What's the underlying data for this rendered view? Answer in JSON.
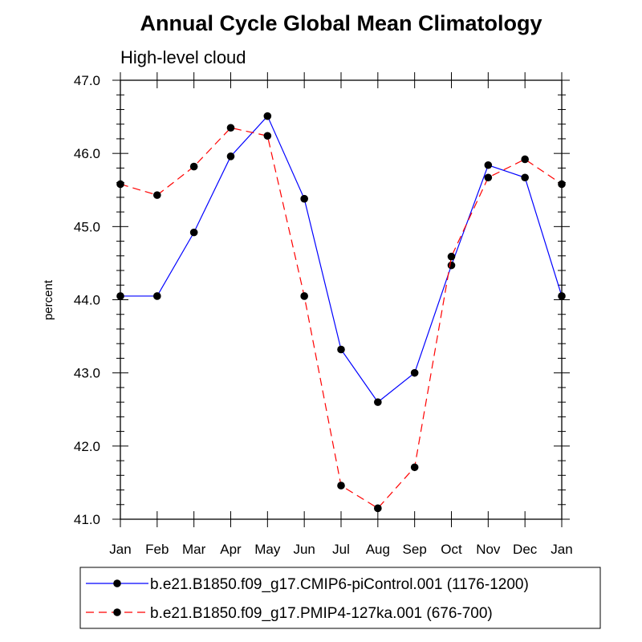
{
  "chart_data": {
    "type": "line",
    "title": "Annual Cycle Global Mean Climatology",
    "subtitle": "High-level cloud",
    "ylabel": "percent",
    "xlabel": "",
    "categories": [
      "Jan",
      "Feb",
      "Mar",
      "Apr",
      "May",
      "Jun",
      "Jul",
      "Aug",
      "Sep",
      "Oct",
      "Nov",
      "Dec",
      "Jan"
    ],
    "ylim": [
      41.0,
      47.0
    ],
    "yticks": [
      "41.0",
      "42.0",
      "43.0",
      "44.0",
      "45.0",
      "46.0",
      "47.0"
    ],
    "grid": false,
    "legend_position": "bottom",
    "series": [
      {
        "name": "b.e21.B1850.f09_g17.CMIP6-piControl.001 (1176-1200)",
        "color": "#0000ff",
        "dash": "solid",
        "values": [
          44.05,
          44.05,
          44.92,
          45.96,
          46.51,
          45.38,
          43.32,
          42.6,
          43.0,
          44.47,
          45.84,
          45.67,
          44.05
        ]
      },
      {
        "name": "b.e21.B1850.f09_g17.PMIP4-127ka.001 (676-700)",
        "color": "#ff0000",
        "dash": "dashed",
        "values": [
          45.58,
          45.43,
          45.82,
          46.35,
          46.24,
          44.05,
          41.46,
          41.15,
          41.71,
          44.59,
          45.67,
          45.92,
          45.58
        ]
      }
    ]
  }
}
